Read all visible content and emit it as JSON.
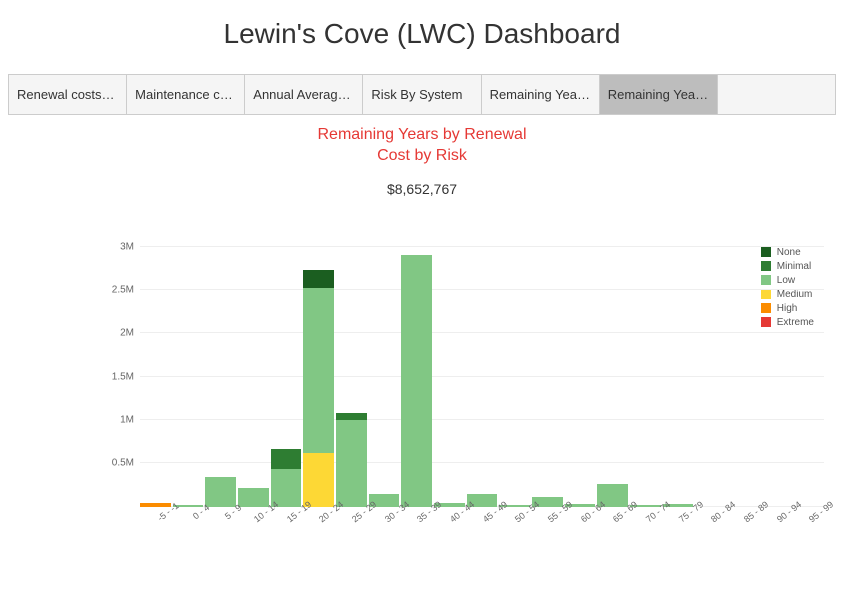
{
  "title": "Lewin's Cove (LWC) Dashboard",
  "tabs": [
    {
      "label": "Renewal costs of …",
      "active": false
    },
    {
      "label": "Maintenance cost…",
      "active": false
    },
    {
      "label": "Annual Average In…",
      "active": false
    },
    {
      "label": "Risk By System",
      "active": false
    },
    {
      "label": "Remaining Years …",
      "active": false
    },
    {
      "label": "Remaining Years …",
      "active": true
    }
  ],
  "chart": {
    "type": "stacked-bar",
    "title_line1": "Remaining Years by Renewal",
    "title_line2": "Cost by Risk",
    "title_color": "#e53935",
    "total_label": "$8,652,767",
    "background_color": "#ffffff",
    "grid_color": "#eeeeee",
    "y": {
      "min": 0,
      "max": 3000000,
      "ticks": [
        0,
        500000,
        1000000,
        1500000,
        2000000,
        2500000,
        3000000
      ],
      "tick_labels": [
        "",
        "0.5M",
        "1M",
        "1.5M",
        "2M",
        "2.5M",
        "3M"
      ]
    },
    "series": [
      {
        "name": "None",
        "color": "#1b5e20"
      },
      {
        "name": "Minimal",
        "color": "#2e7d32"
      },
      {
        "name": "Low",
        "color": "#81c784"
      },
      {
        "name": "Medium",
        "color": "#fdd835"
      },
      {
        "name": "High",
        "color": "#fb8c00"
      },
      {
        "name": "Extreme",
        "color": "#e53935"
      }
    ],
    "categories": [
      "-5 - -1",
      "0 - 4",
      "5 - 9",
      "10 - 14",
      "15 - 19",
      "20 - 24",
      "25 - 29",
      "30 - 34",
      "35 - 39",
      "40 - 44",
      "45 - 49",
      "50 - 54",
      "55 - 59",
      "60 - 64",
      "65 - 69",
      "70 - 74",
      "75 - 79",
      "80 - 84",
      "85 - 89",
      "90 - 94",
      "95 - 99"
    ],
    "stacks": [
      {
        "High": 40000
      },
      {
        "Low": 20000
      },
      {
        "Low": 340000
      },
      {
        "Low": 220000
      },
      {
        "Low": 430000,
        "Minimal": 230000
      },
      {
        "Medium": 620000,
        "Low": 1900000,
        "None": 210000
      },
      {
        "Low": 1000000,
        "Minimal": 80000
      },
      {
        "Low": 140000
      },
      {
        "Low": 2900000
      },
      {
        "Low": 40000
      },
      {
        "Low": 140000
      },
      {
        "Low": 20000
      },
      {
        "Low": 110000
      },
      {
        "Low": 30000
      },
      {
        "Low": 260000
      },
      {
        "Low": 20000
      },
      {
        "Low": 30000
      },
      {},
      {},
      {},
      {}
    ]
  }
}
